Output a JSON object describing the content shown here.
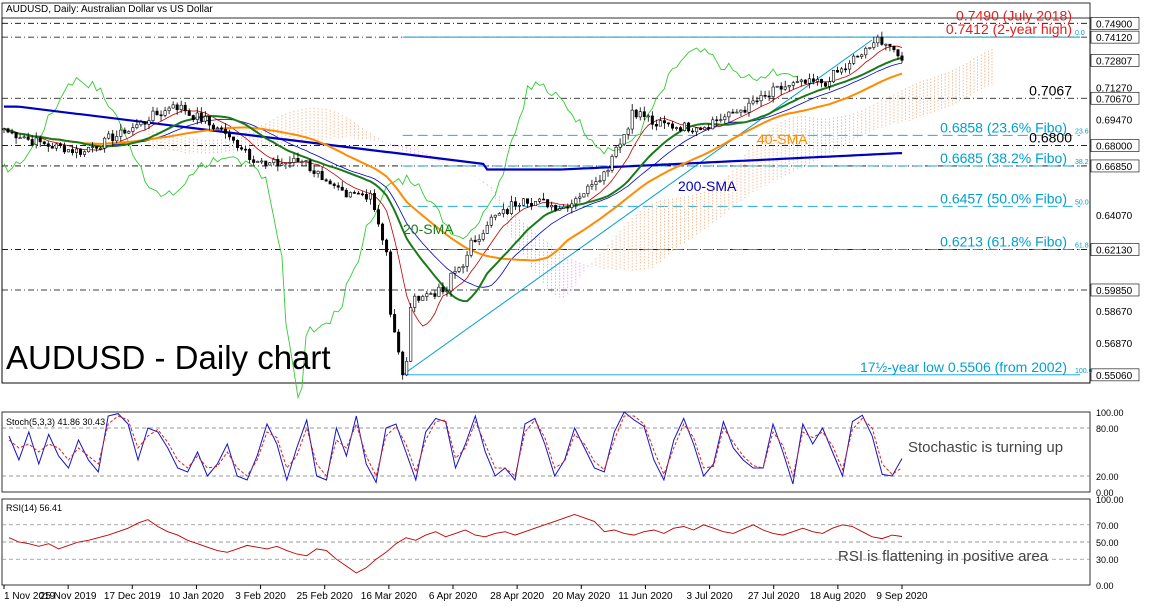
{
  "header": {
    "title": "AUDUSD, Daily:  Australian Dollar vs US Dollar",
    "watermark": "AUDUSD - Daily chart"
  },
  "colors": {
    "candle": "#000000",
    "bull_body": "#ffffff",
    "sma20": "#1a7a1a",
    "sma40": "#ff8c00",
    "sma200": "#0000c0",
    "tenkan": "#c00000",
    "kijun": "#0000c0",
    "chikou": "#33cc33",
    "kumo": "#f2a66e",
    "kumo2": "#ee82ee",
    "fibo": "#00a0d0",
    "trendline": "#00a0d0",
    "red_label": "#e02020",
    "stoch_main": "#1414c8",
    "stoch_signal": "#e02020",
    "rsi": "#c00000",
    "grid": "#000000"
  },
  "chart_data": [
    {
      "type": "line",
      "panel": "price",
      "title": "AUDUSD, Daily:  Australian Dollar vs US Dollar",
      "x_tick_labels": [
        "1 Nov 2019",
        "25 Nov 2019",
        "17 Dec 2019",
        "10 Jan 2020",
        "3 Feb 2020",
        "25 Feb 2020",
        "16 Mar 2020",
        "6 Apr 2020",
        "28 Apr 2020",
        "20 May 2020",
        "11 Jun 2020",
        "3 Jul 2020",
        "27 Jul 2020",
        "18 Aug 2020",
        "9 Sep 2020"
      ],
      "y_tick_labels": [
        "0.74900",
        "0.74120",
        "0.72807",
        "0.71270",
        "0.70670",
        "0.69470",
        "0.68000",
        "0.66850",
        "0.64070",
        "0.62130",
        "0.59850",
        "0.58670",
        "0.56870",
        "0.55060"
      ],
      "ylim": [
        0.546,
        0.752
      ],
      "close_anchors": [
        [
          "2019-11-01",
          0.6895
        ],
        [
          "2019-11-15",
          0.681
        ],
        [
          "2019-11-29",
          0.6765
        ],
        [
          "2019-12-13",
          0.687
        ],
        [
          "2019-12-31",
          0.703
        ],
        [
          "2020-01-15",
          0.69
        ],
        [
          "2020-01-31",
          0.669
        ],
        [
          "2020-02-14",
          0.6715
        ],
        [
          "2020-02-28",
          0.651
        ],
        [
          "2020-03-09",
          0.653
        ],
        [
          "2020-03-13",
          0.62
        ],
        [
          "2020-03-19",
          0.5506
        ],
        [
          "2020-03-24",
          0.595
        ],
        [
          "2020-04-03",
          0.598
        ],
        [
          "2020-04-17",
          0.635
        ],
        [
          "2020-04-30",
          0.65
        ],
        [
          "2020-05-15",
          0.645
        ],
        [
          "2020-05-29",
          0.666
        ],
        [
          "2020-06-08",
          0.7
        ],
        [
          "2020-06-15",
          0.692
        ],
        [
          "2020-06-30",
          0.69
        ],
        [
          "2020-07-15",
          0.7
        ],
        [
          "2020-07-31",
          0.714
        ],
        [
          "2020-08-14",
          0.716
        ],
        [
          "2020-08-31",
          0.738
        ],
        [
          "2020-09-01",
          0.7412
        ],
        [
          "2020-09-09",
          0.7281
        ]
      ],
      "series": [
        {
          "name": "20-SMA"
        },
        {
          "name": "40-SMA"
        },
        {
          "name": "200-SMA"
        }
      ],
      "horizontal_levels": [
        {
          "value": 0.749,
          "label": "0.7490 (July 2018)",
          "style": "dashdot",
          "label_color": "red"
        },
        {
          "value": 0.7412,
          "label": "0.7412 (2-year high)",
          "style": "dashdot",
          "label_color": "red"
        },
        {
          "value": 0.7067,
          "label": "0.7067",
          "style": "dashdot",
          "label_color": "black"
        },
        {
          "value": 0.68,
          "label": "0.6800",
          "style": "dashdot",
          "label_color": "black"
        },
        {
          "value": 0.6685,
          "label": "",
          "style": "dashdot",
          "label_color": "black"
        },
        {
          "value": 0.6213,
          "label": "",
          "style": "dashdot",
          "label_color": "black"
        },
        {
          "value": 0.5985,
          "label": "",
          "style": "dashdot",
          "label_color": "black"
        }
      ],
      "fibonacci": [
        {
          "value": 0.7412,
          "label": "",
          "pct": "0.0"
        },
        {
          "value": 0.6858,
          "label": "0.6858 (23.6% Fibo)",
          "pct": "23.6"
        },
        {
          "value": 0.6685,
          "label": "0.6685 (38.2% Fibo)",
          "pct": "38.2"
        },
        {
          "value": 0.6457,
          "label": "0.6457 (50.0% Fibo)",
          "pct": "50.0"
        },
        {
          "value": 0.6213,
          "label": "0.6213 (61.8% Fibo)",
          "pct": "61.8"
        },
        {
          "value": 0.5506,
          "label": "17½-year low 0.5506 (from 2002)",
          "pct": "100.0"
        }
      ],
      "annotations": [
        "20-SMA",
        "40-SMA",
        "200-SMA"
      ]
    },
    {
      "type": "line",
      "panel": "stochastic",
      "title": "Stoch(5,3,3) 41.86 30.43",
      "annotation": "Stochastic is turning up",
      "ylim": [
        0,
        100
      ],
      "y_tick_labels": [
        "100.00",
        "80.00",
        "20.00",
        "0.00"
      ],
      "levels": [
        80,
        20
      ],
      "series": [
        {
          "values": [
            70,
            40,
            75,
            35,
            72,
            45,
            30,
            65,
            40,
            25,
            95,
            98,
            85,
            40,
            80,
            75,
            55,
            30,
            25,
            50,
            20,
            35,
            60,
            20,
            15,
            45,
            85,
            60,
            15,
            55,
            90,
            20,
            15,
            80,
            45,
            95,
            35,
            12,
            80,
            85,
            50,
            15,
            75,
            92,
            88,
            30,
            60,
            95,
            50,
            20,
            30,
            15,
            85,
            92,
            60,
            20,
            40,
            80,
            55,
            30,
            25,
            75,
            100,
            90,
            82,
            40,
            15,
            65,
            92,
            60,
            20,
            35,
            88,
            55,
            40,
            30,
            30,
            85,
            50,
            10,
            85,
            60,
            80,
            50,
            20,
            88,
            96,
            70,
            22,
            20,
            41.86
          ]
        },
        {
          "values": [
            65,
            55,
            60,
            50,
            60,
            55,
            40,
            55,
            45,
            35,
            85,
            95,
            90,
            55,
            70,
            78,
            62,
            40,
            30,
            45,
            30,
            32,
            50,
            30,
            20,
            40,
            75,
            68,
            30,
            45,
            80,
            35,
            20,
            65,
            55,
            85,
            45,
            20,
            70,
            82,
            60,
            25,
            65,
            88,
            90,
            42,
            55,
            88,
            60,
            30,
            30,
            20,
            75,
            90,
            68,
            30,
            38,
            72,
            60,
            38,
            28,
            65,
            95,
            95,
            85,
            52,
            22,
            55,
            85,
            68,
            30,
            32,
            80,
            62,
            45,
            33,
            30,
            75,
            58,
            20,
            75,
            68,
            75,
            58,
            28,
            78,
            92,
            80,
            35,
            22,
            30.43
          ]
        }
      ]
    },
    {
      "type": "line",
      "panel": "rsi",
      "title": "RSI(14) 56.41",
      "annotation": "RSI is flattening in positive area",
      "ylim": [
        0,
        100
      ],
      "y_tick_labels": [
        "100.00",
        "70.00",
        "50.00",
        "30.00",
        "0.00"
      ],
      "levels": [
        70,
        50,
        30
      ],
      "series": [
        {
          "values": [
            55,
            50,
            48,
            45,
            48,
            42,
            46,
            50,
            52,
            55,
            58,
            62,
            66,
            72,
            76,
            68,
            62,
            58,
            52,
            48,
            44,
            40,
            38,
            42,
            46,
            44,
            42,
            45,
            40,
            36,
            34,
            42,
            40,
            30,
            22,
            14,
            20,
            30,
            38,
            48,
            55,
            52,
            58,
            62,
            56,
            60,
            64,
            58,
            56,
            60,
            62,
            58,
            62,
            66,
            70,
            74,
            78,
            82,
            78,
            74,
            62,
            64,
            60,
            58,
            62,
            64,
            60,
            66,
            68,
            64,
            70,
            66,
            62,
            60,
            65,
            70,
            64,
            60,
            58,
            62,
            66,
            62,
            60,
            66,
            70,
            68,
            62,
            56,
            54,
            58,
            56.41
          ]
        }
      ]
    }
  ]
}
